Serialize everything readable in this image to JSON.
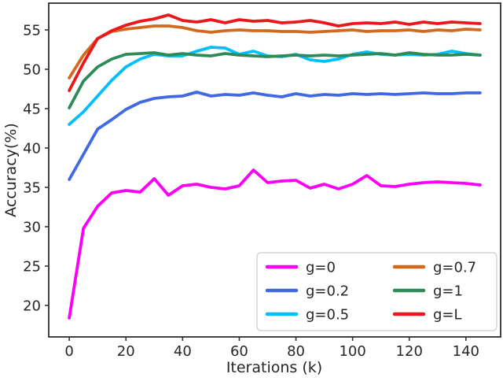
{
  "figure": {
    "background": "#ffffff",
    "spine_color": "#2e2e2e",
    "tick_color": "#333333",
    "text_color": "#262626",
    "legend_border_color": "#cccccc",
    "legend_background": "#ffffff"
  },
  "chart_data": {
    "type": "line",
    "title": "",
    "xlabel": "Iterations (k)",
    "ylabel": "Accuracy(%)",
    "xlim": [
      -7.25,
      152.25
    ],
    "ylim": [
      16.0,
      58.4
    ],
    "xticks": [
      0,
      20,
      40,
      60,
      80,
      100,
      120,
      140
    ],
    "yticks": [
      20,
      25,
      30,
      35,
      40,
      45,
      50,
      55
    ],
    "grid": false,
    "legend_position": "lower-right-inside",
    "legend_columns": 2,
    "line_width": 3.8,
    "x": [
      0,
      5,
      10,
      15,
      20,
      25,
      30,
      35,
      40,
      45,
      50,
      55,
      60,
      65,
      70,
      75,
      80,
      85,
      90,
      95,
      100,
      105,
      110,
      115,
      120,
      125,
      130,
      135,
      140,
      145
    ],
    "series": [
      {
        "name": "g=0",
        "color": "#fb00f5",
        "values": [
          18.4,
          29.8,
          32.6,
          34.3,
          34.6,
          34.4,
          36.1,
          34.0,
          35.2,
          35.4,
          35.0,
          34.8,
          35.2,
          37.2,
          35.6,
          35.8,
          35.9,
          34.9,
          35.4,
          34.8,
          35.4,
          36.5,
          35.2,
          35.1,
          35.4,
          35.6,
          35.7,
          35.6,
          35.5,
          35.3
        ]
      },
      {
        "name": "g=0.2",
        "color": "#4169e1",
        "values": [
          36.0,
          39.2,
          42.4,
          43.6,
          44.9,
          45.8,
          46.3,
          46.5,
          46.6,
          47.1,
          46.6,
          46.8,
          46.7,
          47.0,
          46.7,
          46.5,
          46.9,
          46.6,
          46.8,
          46.7,
          46.9,
          46.8,
          46.9,
          46.8,
          46.9,
          47.0,
          46.9,
          46.9,
          47.0,
          47.0
        ]
      },
      {
        "name": "g=0.5",
        "color": "#00bfff",
        "values": [
          43.0,
          44.6,
          46.6,
          48.6,
          50.3,
          51.3,
          51.9,
          51.7,
          51.7,
          52.3,
          52.8,
          52.7,
          51.9,
          52.3,
          51.7,
          51.6,
          51.9,
          51.2,
          51.0,
          51.3,
          51.9,
          52.2,
          51.9,
          51.8,
          51.9,
          51.8,
          51.9,
          52.3,
          52.0,
          51.8
        ]
      },
      {
        "name": "g=0.7",
        "color": "#d2691e",
        "values": [
          48.9,
          51.8,
          53.9,
          54.8,
          55.1,
          55.3,
          55.5,
          55.5,
          55.3,
          54.9,
          54.7,
          54.9,
          55.0,
          54.9,
          54.9,
          54.8,
          54.8,
          54.7,
          54.8,
          54.9,
          55.0,
          54.8,
          54.9,
          54.9,
          55.0,
          54.8,
          55.0,
          54.9,
          55.1,
          55.0
        ]
      },
      {
        "name": "g=1",
        "color": "#2e8b57",
        "values": [
          45.1,
          48.5,
          50.3,
          51.3,
          51.9,
          52.0,
          52.1,
          51.8,
          52.0,
          51.8,
          51.7,
          52.0,
          51.8,
          51.7,
          51.6,
          51.7,
          51.8,
          51.7,
          51.8,
          51.7,
          51.8,
          51.9,
          52.0,
          51.8,
          52.1,
          51.9,
          51.8,
          51.8,
          51.9,
          51.8
        ]
      },
      {
        "name": "g=L",
        "color": "#e8191d",
        "values": [
          47.3,
          50.8,
          53.9,
          54.9,
          55.6,
          56.1,
          56.4,
          56.9,
          56.2,
          56.0,
          56.3,
          55.9,
          56.3,
          56.1,
          56.2,
          55.9,
          56.0,
          56.2,
          55.9,
          55.5,
          55.8,
          55.9,
          55.8,
          56.0,
          55.7,
          56.0,
          55.8,
          56.0,
          55.9,
          55.8
        ]
      }
    ]
  }
}
